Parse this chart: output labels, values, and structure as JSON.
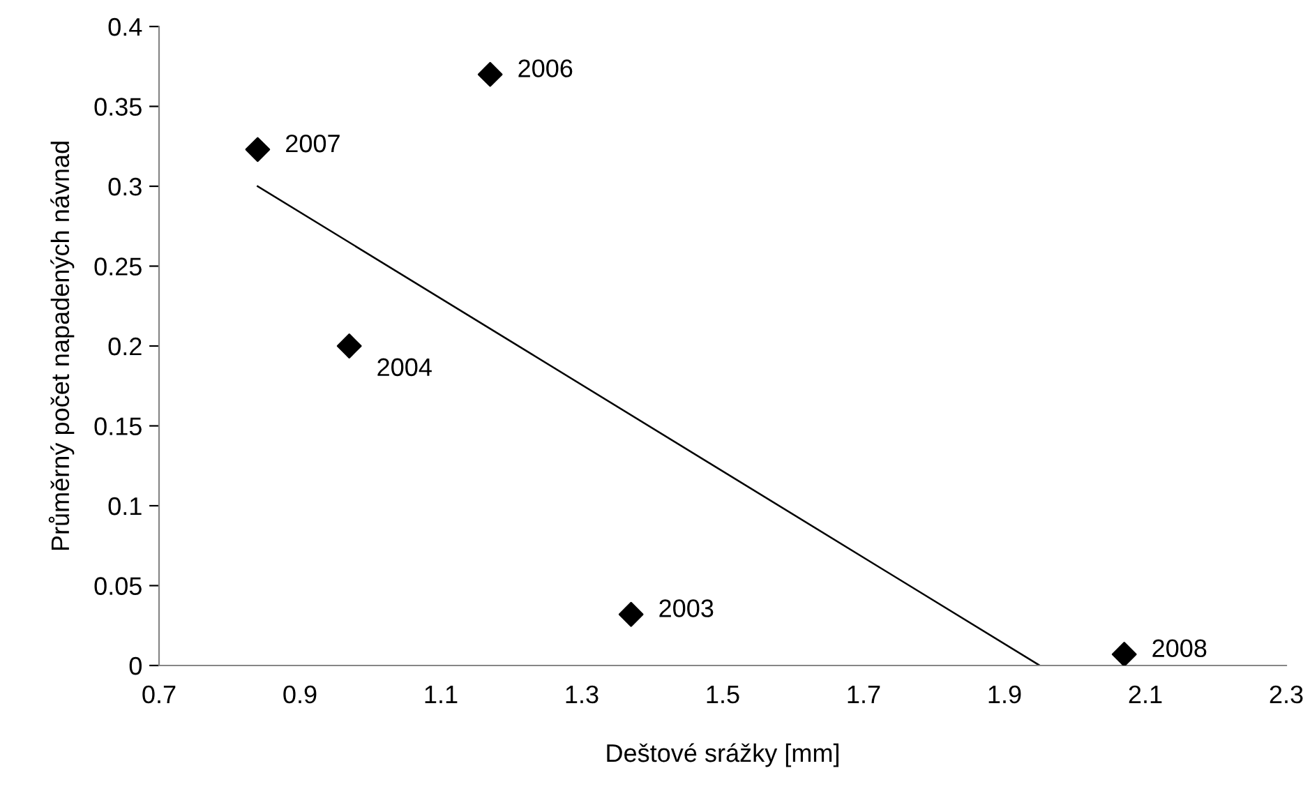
{
  "chart_data": {
    "type": "scatter",
    "xlabel": "Deštové srážky [mm]",
    "ylabel": "Průměrný počet napadených návnad",
    "x": [
      0.84,
      1.17,
      0.97,
      1.37,
      2.07
    ],
    "series": [
      {
        "color": "#000000",
        "values": [
          0.323,
          0.37,
          0.2,
          0.032,
          0.007
        ],
        "marker": "diamond"
      },
      {
        "type": "line",
        "color": "#000000",
        "x": [
          0.84,
          1.95
        ],
        "values": [
          0.3,
          0.0
        ],
        "line_style": "solid",
        "marker": "none"
      }
    ],
    "annotations": [
      {
        "text": "2007",
        "x": 0.84,
        "y": 0.323
      },
      {
        "text": "2006",
        "x": 1.17,
        "y": 0.37
      },
      {
        "text": "2004",
        "x": 0.97,
        "y": 0.2
      },
      {
        "text": "2003",
        "x": 1.37,
        "y": 0.032
      },
      {
        "text": "2008",
        "x": 2.07,
        "y": 0.007
      }
    ],
    "xlim": [
      0.7,
      2.3
    ],
    "xticks": [
      0.7,
      0.9,
      1.1,
      1.3,
      1.5,
      1.7,
      1.9,
      2.1,
      2.3
    ],
    "ylim": [
      0,
      0.4
    ],
    "yticks": [
      0,
      0.05,
      0.1,
      0.15,
      0.2,
      0.25,
      0.3,
      0.35,
      0.4
    ],
    "grid": false,
    "legend": false
  }
}
